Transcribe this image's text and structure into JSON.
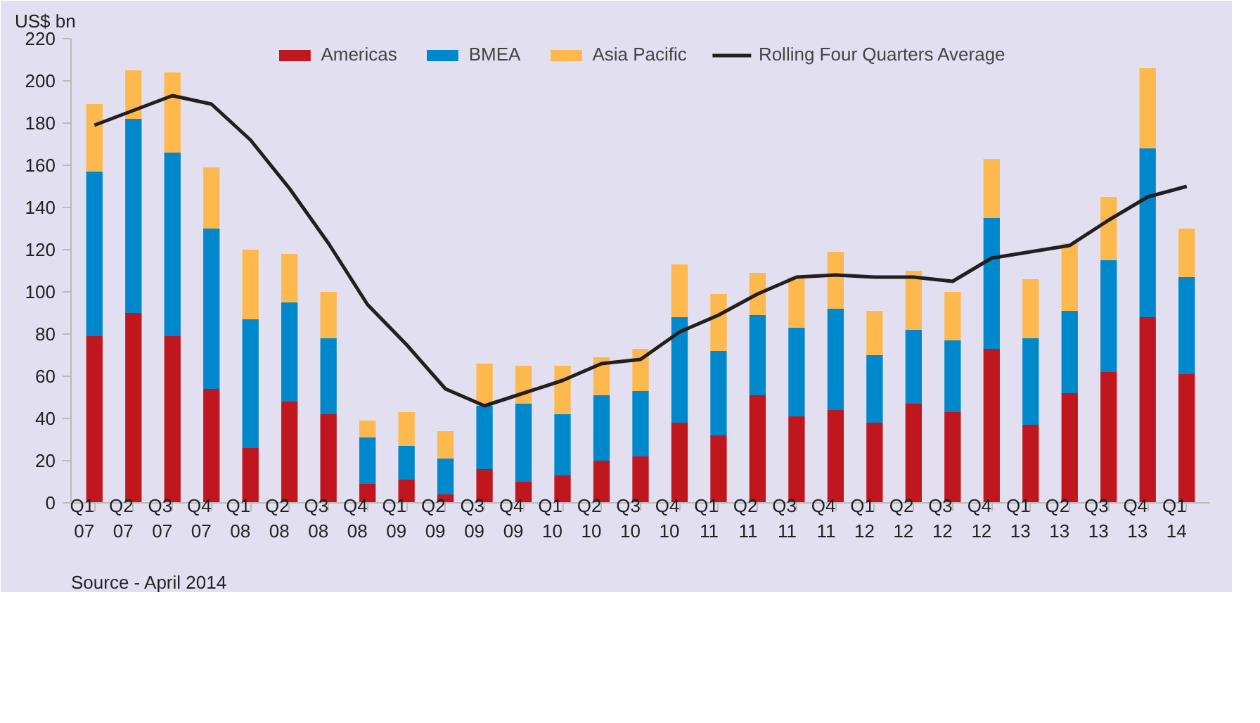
{
  "chart_data": {
    "type": "bar",
    "stacked": true,
    "ylabel": "US$ bn",
    "categories": [
      "Q1\n07",
      "Q2\n07",
      "Q3\n07",
      "Q4\n07",
      "Q1\n08",
      "Q2\n08",
      "Q3\n08",
      "Q4\n08",
      "Q1\n09",
      "Q2\n09",
      "Q3\n09",
      "Q4\n09",
      "Q1\n10",
      "Q2\n10",
      "Q3\n10",
      "Q4\n10",
      "Q1\n11",
      "Q2\n11",
      "Q3\n11",
      "Q4\n11",
      "Q1\n12",
      "Q2\n12",
      "Q3\n12",
      "Q4\n12",
      "Q1\n13",
      "Q2\n13",
      "Q3\n13",
      "Q4\n13",
      "Q1\n14"
    ],
    "series": [
      {
        "name": "Americas",
        "color": "#c0161d",
        "values": [
          79,
          90,
          79,
          54,
          26,
          48,
          42,
          9,
          11,
          4,
          16,
          10,
          13,
          20,
          22,
          38,
          32,
          51,
          41,
          44,
          38,
          47,
          43,
          73,
          37,
          52,
          62,
          88,
          61
        ]
      },
      {
        "name": "BMEA",
        "color": "#0088cc",
        "values": [
          78,
          92,
          87,
          76,
          61,
          47,
          36,
          22,
          16,
          17,
          30,
          37,
          29,
          31,
          31,
          50,
          40,
          38,
          42,
          48,
          32,
          35,
          34,
          62,
          41,
          39,
          53,
          80,
          46
        ]
      },
      {
        "name": "Asia Pacific",
        "color": "#fdb94e",
        "values": [
          32,
          23,
          38,
          29,
          33,
          23,
          22,
          8,
          16,
          13,
          20,
          18,
          23,
          18,
          20,
          25,
          27,
          20,
          24,
          27,
          21,
          28,
          23,
          28,
          28,
          32,
          30,
          38,
          23
        ]
      },
      {
        "name": "Rolling Four Quarters Average",
        "type": "line",
        "color": "#231f20",
        "values": [
          179,
          186,
          193,
          189,
          172,
          149,
          123,
          94,
          75,
          54,
          46,
          52,
          58,
          66,
          68,
          81,
          89,
          99,
          107,
          108,
          107,
          107,
          105,
          116,
          119,
          122,
          134,
          145,
          150
        ]
      }
    ],
    "ylim": [
      0,
      220
    ],
    "yticks": [
      0,
      20,
      40,
      60,
      80,
      100,
      120,
      140,
      160,
      180,
      200,
      220
    ],
    "grid": false,
    "legend": "top",
    "marker": "none",
    "line_style": "solid",
    "annotations": [
      "Source - April 2014"
    ]
  }
}
